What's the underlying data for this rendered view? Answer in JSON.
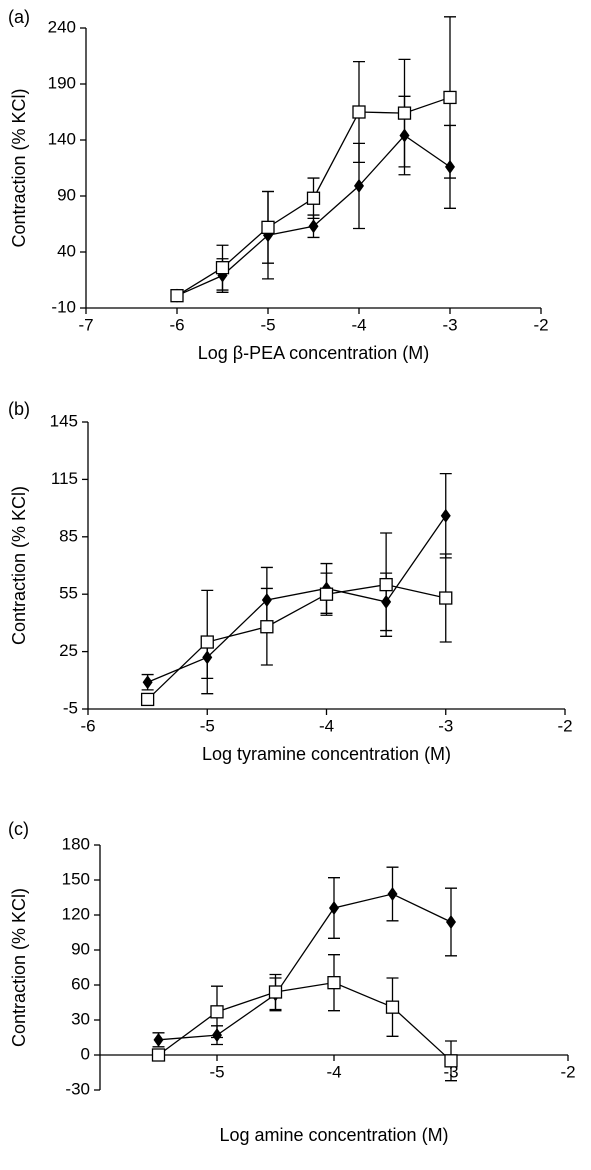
{
  "chart_data": [
    {
      "type": "line",
      "panel": "(a)",
      "x_label": "Log β-PEA concentration (M)",
      "y_label": "Contraction (% KCl)",
      "x": [
        -6,
        -5.5,
        -5,
        -4.5,
        -4,
        -3.5,
        -3
      ],
      "series": [
        {
          "color": "#000000",
          "marker": "diamond",
          "values": [
            1,
            19,
            55,
            63,
            99,
            144,
            116
          ],
          "errors": [
            1,
            15,
            39,
            10,
            38,
            35,
            37
          ]
        },
        {
          "color": "#000000",
          "marker": "square",
          "values": [
            1,
            26,
            62,
            88,
            165,
            164,
            178
          ],
          "errors": [
            1,
            20,
            32,
            18,
            45,
            48,
            72
          ]
        }
      ],
      "xlim": [
        -7,
        -2
      ],
      "xticks": [
        -7,
        -6,
        -5,
        -4,
        -3,
        -2
      ],
      "ylim": [
        -10,
        240
      ],
      "yticks": [
        -10,
        40,
        90,
        140,
        190,
        240
      ]
    },
    {
      "type": "line",
      "panel": "(b)",
      "x_label": "Log tyramine concentration (M)",
      "y_label": "Contraction (% KCl)",
      "x": [
        -5.5,
        -5,
        -4.5,
        -4,
        -3.5,
        -3
      ],
      "series": [
        {
          "color": "#000000",
          "marker": "diamond",
          "values": [
            9,
            22,
            52,
            58,
            51,
            96
          ],
          "errors": [
            4,
            11,
            17,
            13,
            15,
            22
          ]
        },
        {
          "color": "#000000",
          "marker": "square",
          "values": [
            0,
            30,
            38,
            55,
            60,
            53
          ],
          "errors": [
            0,
            27,
            20,
            11,
            27,
            23
          ]
        }
      ],
      "xlim": [
        -6,
        -2
      ],
      "xticks": [
        -6,
        -5,
        -4,
        -3,
        -2
      ],
      "ylim": [
        -5,
        145
      ],
      "yticks": [
        -5,
        25,
        55,
        85,
        115,
        145
      ]
    },
    {
      "type": "line",
      "panel": "(c)",
      "x_label": "Log amine concentration (M)",
      "y_label": "Contraction (% KCl)",
      "x": [
        -5.5,
        -5,
        -4.5,
        -4,
        -3.5,
        -3
      ],
      "series": [
        {
          "color": "#000000",
          "marker": "diamond",
          "values": [
            13,
            17,
            52,
            126,
            138,
            114
          ],
          "errors": [
            6,
            8,
            14,
            26,
            23,
            29
          ]
        },
        {
          "color": "#000000",
          "marker": "square",
          "values": [
            0,
            37,
            54,
            62,
            41,
            -5
          ],
          "errors": [
            0,
            22,
            15,
            24,
            25,
            17
          ]
        }
      ],
      "xlim": [
        -6,
        -2
      ],
      "xticks": [
        -5,
        -4,
        -3,
        -2
      ],
      "x_axis_at": 0,
      "ylim": [
        -30,
        180
      ],
      "yticks": [
        -30,
        0,
        30,
        60,
        90,
        120,
        150,
        180
      ]
    }
  ]
}
